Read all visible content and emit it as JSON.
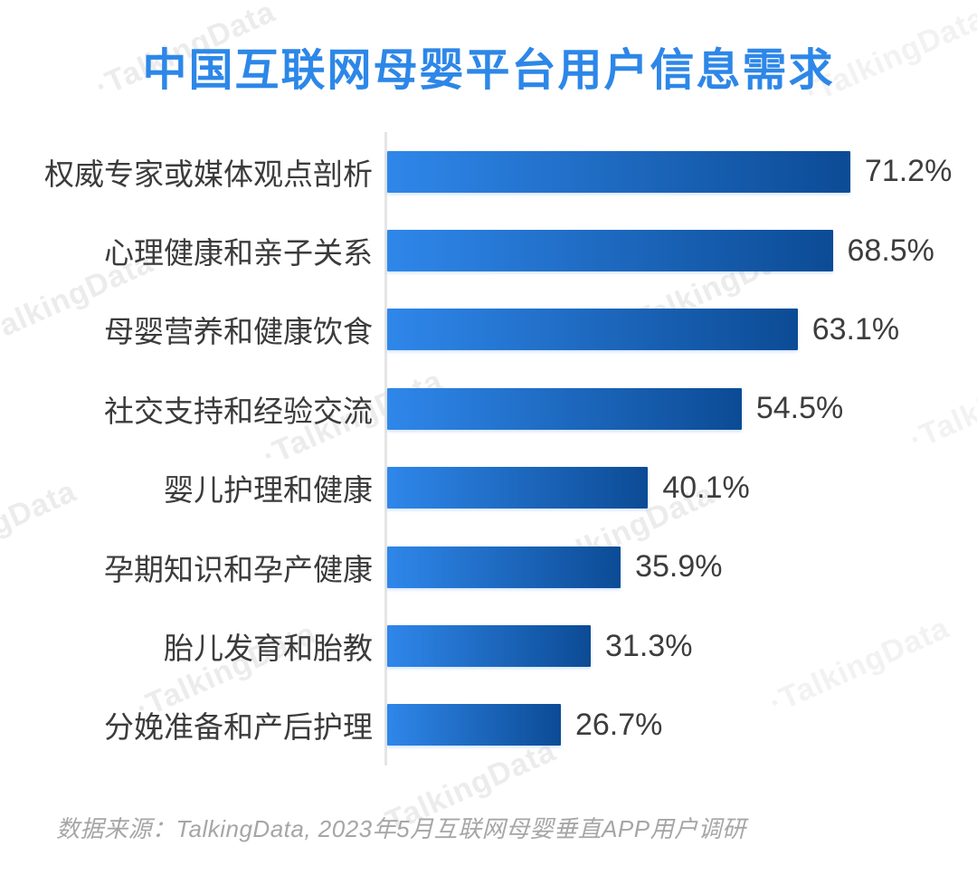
{
  "title": "中国互联网母婴平台用户信息需求",
  "watermark": {
    "text": "·TalkingData"
  },
  "footer": {
    "source": "数据来源：TalkingData, 2023年5月互联网母婴垂直APP用户调研"
  },
  "colors": {
    "title": "#2D87E8",
    "bar_gradient_start": "#2F87EA",
    "bar_gradient_end": "#0C4B95",
    "category_label": "#3B3B3B",
    "value_label": "#3D3D3D",
    "axis_line": "#E5E5E5",
    "watermark": "#ECECEC",
    "footer": "#A6A6A6",
    "background": "#FFFFFF"
  },
  "chart_data": {
    "type": "bar",
    "orientation": "horizontal",
    "title": "中国互联网母婴平台用户信息需求",
    "categories": [
      "权威专家或媒体观点剖析",
      "心理健康和亲子关系",
      "母婴营养和健康饮食",
      "社交支持和经验交流",
      "婴儿护理和健康",
      "孕期知识和孕产健康",
      "胎儿发育和胎教",
      "分娩准备和产后护理"
    ],
    "values": [
      71.2,
      68.5,
      63.1,
      54.5,
      40.1,
      35.9,
      31.3,
      26.7
    ],
    "value_labels": [
      "71.2%",
      "68.5%",
      "63.1%",
      "54.5%",
      "40.1%",
      "35.9%",
      "31.3%",
      "26.7%"
    ],
    "unit": "%",
    "xlim": [
      0,
      80
    ],
    "grid": false,
    "legend": false,
    "value_labels_shown": true,
    "bar_style": "left-to-right gradient, light blue to dark navy",
    "source": "数据来源：TalkingData, 2023年5月互联网母婴垂直APP用户调研"
  }
}
